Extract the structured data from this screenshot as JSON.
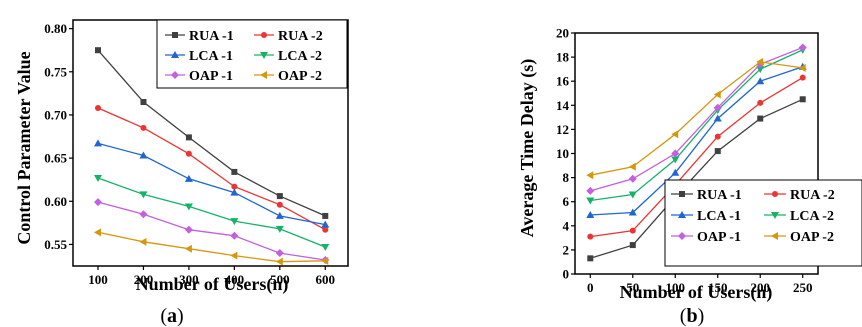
{
  "chart_data": [
    {
      "type": "line",
      "panel_label_prefix": "(",
      "panel_label_letter": "a",
      "panel_label_suffix": ")",
      "xlabel": "Number of Users(n)",
      "ylabel": "Control Parameter Value",
      "x": [
        100,
        200,
        300,
        400,
        500,
        600
      ],
      "xticks": [
        100,
        200,
        300,
        400,
        500,
        600
      ],
      "yticks": [
        0.55,
        0.6,
        0.65,
        0.7,
        0.75,
        0.8
      ],
      "xlim": [
        45,
        650
      ],
      "ylim": [
        0.525,
        0.81
      ],
      "legend_position": "top-right",
      "series": [
        {
          "name": "RUA -1",
          "color": "#404040",
          "marker": "square",
          "values": [
            0.775,
            0.715,
            0.674,
            0.634,
            0.606,
            0.583
          ]
        },
        {
          "name": "RUA -2",
          "color": "#ee3333",
          "marker": "circle",
          "values": [
            0.708,
            0.685,
            0.655,
            0.617,
            0.596,
            0.567
          ]
        },
        {
          "name": "LCA -1",
          "color": "#1f66d1",
          "marker": "triangle-up",
          "values": [
            0.667,
            0.653,
            0.626,
            0.61,
            0.583,
            0.573
          ]
        },
        {
          "name": "LCA -2",
          "color": "#17b26a",
          "marker": "triangle-down",
          "values": [
            0.627,
            0.608,
            0.594,
            0.577,
            0.568,
            0.547
          ]
        },
        {
          "name": "OAP -1",
          "color": "#c45fe0",
          "marker": "diamond",
          "values": [
            0.599,
            0.585,
            0.567,
            0.56,
            0.54,
            0.532
          ]
        },
        {
          "name": "OAP -2",
          "color": "#d4980f",
          "marker": "triangle-left",
          "values": [
            0.564,
            0.553,
            0.545,
            0.537,
            0.53,
            0.531
          ]
        }
      ]
    },
    {
      "type": "line",
      "panel_label_prefix": "(",
      "panel_label_letter": "b",
      "panel_label_suffix": ")",
      "xlabel": "Number of Users(n)",
      "ylabel": "Average Time Delay (s)",
      "x": [
        0,
        50,
        100,
        150,
        200,
        250
      ],
      "xticks": [
        0,
        50,
        100,
        150,
        200,
        250
      ],
      "yticks": [
        0,
        2,
        4,
        6,
        8,
        10,
        12,
        14,
        16,
        18,
        20
      ],
      "xlim": [
        -18,
        268
      ],
      "ylim": [
        0,
        20
      ],
      "legend_position": "bottom-right",
      "series": [
        {
          "name": "RUA -1",
          "color": "#404040",
          "marker": "square",
          "values": [
            1.3,
            2.4,
            6.4,
            10.2,
            12.9,
            14.5
          ]
        },
        {
          "name": "RUA -2",
          "color": "#ee3333",
          "marker": "circle",
          "values": [
            3.1,
            3.6,
            7.4,
            11.4,
            14.2,
            16.3
          ]
        },
        {
          "name": "LCA -1",
          "color": "#1f66d1",
          "marker": "triangle-up",
          "values": [
            4.9,
            5.1,
            8.4,
            12.9,
            16.0,
            17.2
          ]
        },
        {
          "name": "LCA -2",
          "color": "#17b26a",
          "marker": "triangle-down",
          "values": [
            6.1,
            6.6,
            9.5,
            13.6,
            17.0,
            18.6
          ]
        },
        {
          "name": "OAP -1",
          "color": "#c45fe0",
          "marker": "diamond",
          "values": [
            6.9,
            7.9,
            10.0,
            13.8,
            17.4,
            18.8
          ]
        },
        {
          "name": "OAP -2",
          "color": "#d4980f",
          "marker": "triangle-left",
          "values": [
            8.2,
            8.9,
            11.6,
            14.9,
            17.6,
            17.1
          ]
        }
      ]
    }
  ]
}
